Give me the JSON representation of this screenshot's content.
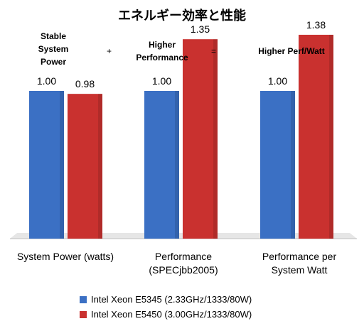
{
  "chart_data": {
    "type": "bar",
    "title": "エネルギー効率と性能",
    "categories": [
      "System Power (watts)",
      "Performance (SPECjbb2005)",
      "Performance per System Watt"
    ],
    "category_label_lines": [
      [
        "System Power (watts)"
      ],
      [
        "Performance",
        "(SPECjbb2005)"
      ],
      [
        "Performance per",
        "System Watt"
      ]
    ],
    "series": [
      {
        "name": "Intel Xeon E5345 (2.33GHz/1333/80W)",
        "values": [
          1.0,
          1.0,
          1.0
        ],
        "labels": [
          "1.00",
          "1.00",
          "1.00"
        ],
        "color": "#3b70c4"
      },
      {
        "name": "Intel Xeon E5450 (3.00GHz/1333/80W)",
        "values": [
          0.98,
          1.35,
          1.38
        ],
        "labels": [
          "0.98",
          "1.35",
          "1.38"
        ],
        "color": "#c9312f"
      }
    ],
    "ylim": [
      0,
      1.5
    ],
    "grid": false,
    "legend_position": "bottom",
    "annotations": {
      "term1": [
        "Stable",
        "System",
        "Power"
      ],
      "plus": "+",
      "term2": [
        "Higher",
        "Performance"
      ],
      "equals": "=",
      "term3": "Higher Perf/Watt"
    }
  }
}
